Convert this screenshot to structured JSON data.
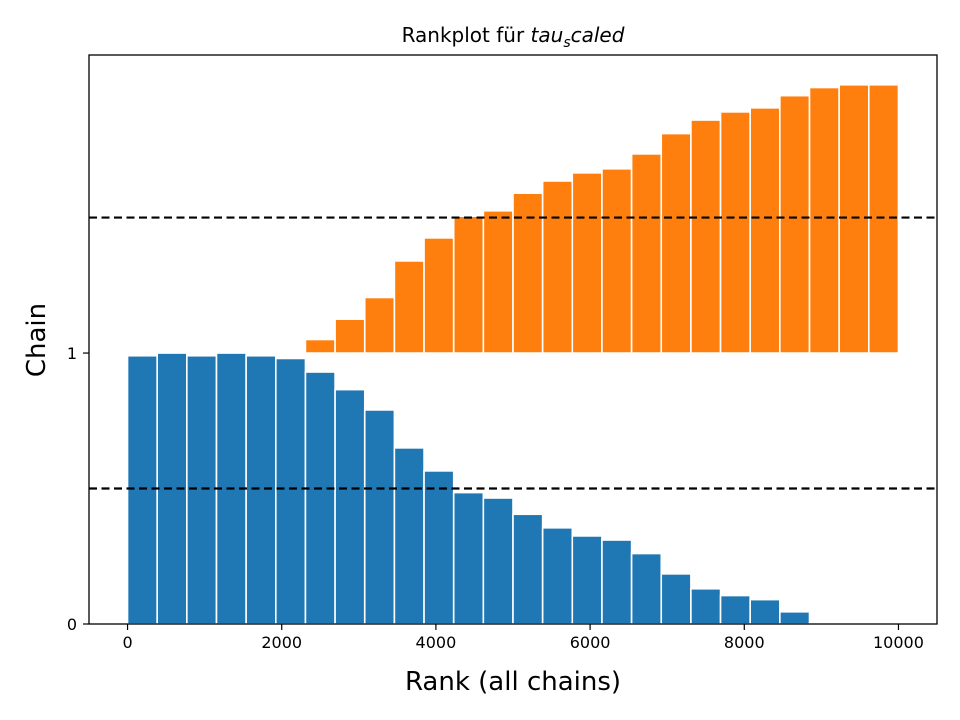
{
  "chart_data": {
    "type": "bar",
    "title_prefix": "Rankplot für ",
    "title_math_base": "tau",
    "title_math_sub": "s",
    "title_math_rest": "caled",
    "xlabel": "Rank (all chains)",
    "ylabel": "Chain",
    "xlim": [
      -500,
      10500
    ],
    "ylim": [
      0,
      2.1
    ],
    "xticks": [
      0,
      2000,
      4000,
      6000,
      8000,
      10000
    ],
    "xtick_labels": [
      "0",
      "2000",
      "4000",
      "6000",
      "8000",
      "10000"
    ],
    "yticks": [
      0,
      1
    ],
    "ytick_labels": [
      "0",
      "1"
    ],
    "bin_edges": [
      0,
      384.6,
      769.2,
      1153.8,
      1538.5,
      1923.1,
      2307.7,
      2692.3,
      3076.9,
      3461.5,
      3846.2,
      4230.8,
      4615.4,
      5000,
      5384.6,
      5769.2,
      6153.8,
      6538.5,
      6923.1,
      7307.7,
      7692.3,
      8076.9,
      8461.5,
      8846.2,
      9230.8,
      9615.4,
      10000
    ],
    "reference_lines": [
      0.5,
      1.5
    ],
    "reference_line_color": "#000000",
    "series": [
      {
        "color": "#1f77b4",
        "offset": 0,
        "values": [
          0.99,
          1.0,
          0.99,
          1.0,
          0.99,
          0.98,
          0.93,
          0.865,
          0.79,
          0.65,
          0.565,
          0.485,
          0.465,
          0.405,
          0.355,
          0.325,
          0.31,
          0.26,
          0.185,
          0.13,
          0.105,
          0.09,
          0.045,
          0.005,
          0.0,
          0.0
        ]
      },
      {
        "color": "#ff7f0e",
        "offset": 1,
        "values": [
          0.0,
          0.0,
          0.0,
          0.0,
          0.0,
          0.005,
          0.05,
          0.125,
          0.205,
          0.34,
          0.425,
          0.505,
          0.525,
          0.59,
          0.635,
          0.665,
          0.68,
          0.735,
          0.81,
          0.86,
          0.89,
          0.905,
          0.95,
          0.98,
          0.99,
          0.99
        ]
      }
    ]
  }
}
